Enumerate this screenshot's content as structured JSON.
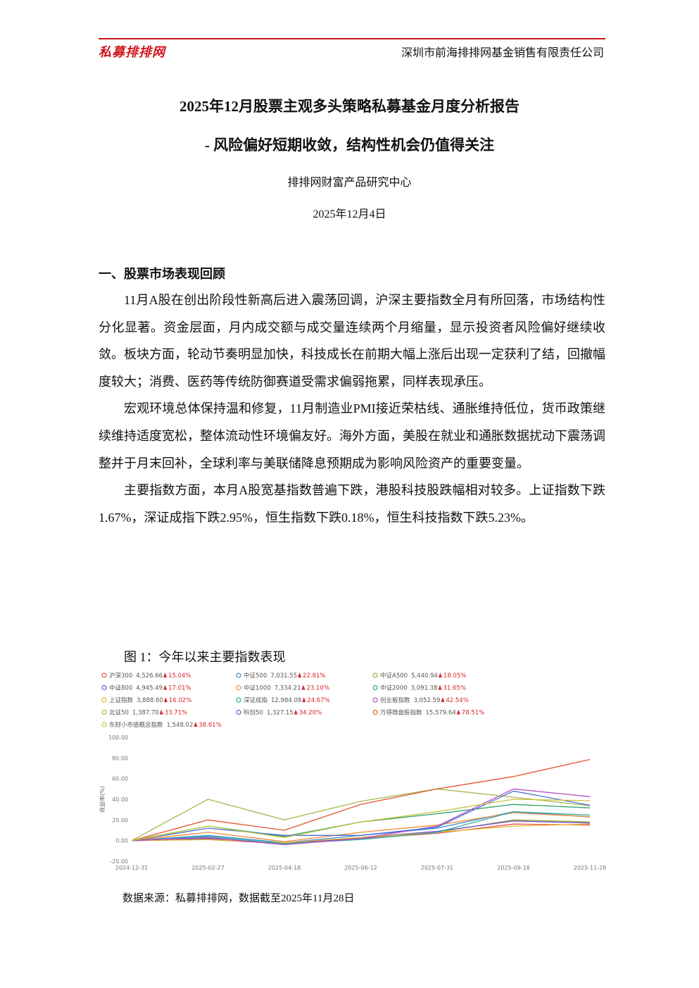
{
  "header": {
    "logo": "私募排排网",
    "company": "深圳市前海排排网基金销售有限责任公司"
  },
  "title": {
    "line1": "2025年12月股票主观多头策略私募基金月度分析报告",
    "line2": "-  风险偏好短期收敛，结构性机会仍值得关注",
    "author": "排排网财富产品研究中心",
    "date": "2025年12月4日"
  },
  "section": {
    "heading": "一、股票市场表现回顾",
    "paragraphs": [
      "11月A股在创出阶段性新高后进入震荡回调，沪深主要指数全月有所回落，市场结构性分化显著。资金层面，月内成交额与成交量连续两个月缩量，显示投资者风险偏好继续收敛。板块方面，轮动节奏明显加快，科技成长在前期大幅上涨后出现一定获利了结，回撤幅度较大；消费、医药等传统防御赛道受需求偏弱拖累，同样表现承压。",
      "宏观环境总体保持温和修复，11月制造业PMI接近荣枯线、通胀维持低位，货币政策继续维持适度宽松，整体流动性环境偏友好。海外方面，美股在就业和通胀数据扰动下震荡调整并于月末回补，全球利率与美联储降息预期成为影响风险资产的重要变量。",
      "主要指数方面，本月A股宽基指数普遍下跌，港股科技股跌幅相对较多。上证指数下跌1.67%，深证成指下跌2.95%，恒生指数下跌0.18%，恒生科技指数下跌5.23%。"
    ]
  },
  "figure": {
    "caption": "图 1：今年以来主要指数表现",
    "source": "数据来源：私募排排网，数据截至2025年11月28日"
  },
  "chart_data": {
    "type": "line",
    "y_label": "收益率(%)",
    "categories": [
      "2024-12-31",
      "2025-02-27",
      "2025-04-18",
      "2025-06-12",
      "2025-07-31",
      "2025-09-18",
      "2025-11-28"
    ],
    "ylim": [
      -20,
      100
    ],
    "yticks": [
      {
        "value": 100,
        "label": "100.00"
      },
      {
        "value": 80,
        "label": "80.00"
      },
      {
        "value": 60,
        "label": "60.00"
      },
      {
        "value": 40,
        "label": "40.00"
      },
      {
        "value": 20,
        "label": "20.00"
      },
      {
        "value": 0,
        "label": "0.00"
      },
      {
        "value": -20,
        "label": "-20.00"
      }
    ],
    "grid": false,
    "series": [
      {
        "name": "沪深300",
        "close": "4,526.66",
        "change": "15.04%",
        "color": "#e8505b",
        "values": [
          0,
          1,
          -3,
          2,
          7,
          16,
          15.04
        ]
      },
      {
        "name": "中证500",
        "close": "7,031.55",
        "change": "22.81%",
        "color": "#3b8fd6",
        "values": [
          0,
          5,
          -2,
          5,
          12,
          28,
          22.81
        ]
      },
      {
        "name": "中证A500",
        "close": "5,440.94",
        "change": "18.05%",
        "color": "#8fb33a",
        "values": [
          0,
          2,
          -3,
          3,
          8,
          20,
          18.05
        ]
      },
      {
        "name": "中证800",
        "close": "4,945.49",
        "change": "17.01%",
        "color": "#7b4bc9",
        "values": [
          0,
          2,
          -3,
          3,
          9,
          19,
          17.01
        ]
      },
      {
        "name": "中证1000",
        "close": "7,334.21",
        "change": "23.10%",
        "color": "#f08a3c",
        "values": [
          0,
          8,
          -1,
          8,
          15,
          27,
          23.1
        ]
      },
      {
        "name": "中证2000",
        "close": "3,091.38",
        "change": "31.65%",
        "color": "#2fa36b",
        "values": [
          0,
          14,
          4,
          18,
          26,
          35,
          31.65
        ]
      },
      {
        "name": "上证指数",
        "close": "3,888.60",
        "change": "16.02%",
        "color": "#e0b82c",
        "values": [
          0,
          1,
          -2,
          3,
          8,
          14,
          16.02
        ]
      },
      {
        "name": "深证成指",
        "close": "12,984.08",
        "change": "24.67%",
        "color": "#2aa9a0",
        "values": [
          0,
          4,
          -3,
          1,
          8,
          28,
          24.67
        ]
      },
      {
        "name": "创业板指数",
        "close": "3,052.59",
        "change": "42.54%",
        "color": "#b44fc4",
        "values": [
          0,
          3,
          -4,
          2,
          14,
          50,
          42.54
        ]
      },
      {
        "name": "北证50",
        "close": "1,387.70",
        "change": "33.71%",
        "color": "#a5b84a",
        "values": [
          0,
          40,
          20,
          38,
          50,
          42,
          33.71
        ]
      },
      {
        "name": "科创50",
        "close": "1,327.15",
        "change": "34.20%",
        "color": "#4a6fd8",
        "values": [
          0,
          12,
          5,
          5,
          13,
          48,
          34.2
        ]
      },
      {
        "name": "万得微盘股指数",
        "close": "15,579.64",
        "change": "78.51%",
        "color": "#e5532d",
        "values": [
          0,
          20,
          10,
          35,
          50,
          62,
          78.51
        ]
      },
      {
        "name": "东财小市值概念指数",
        "close": "1,548.02",
        "change": "38.61%",
        "color": "#c7c23a",
        "values": [
          0,
          14,
          3,
          18,
          28,
          40,
          38.61
        ]
      }
    ]
  }
}
